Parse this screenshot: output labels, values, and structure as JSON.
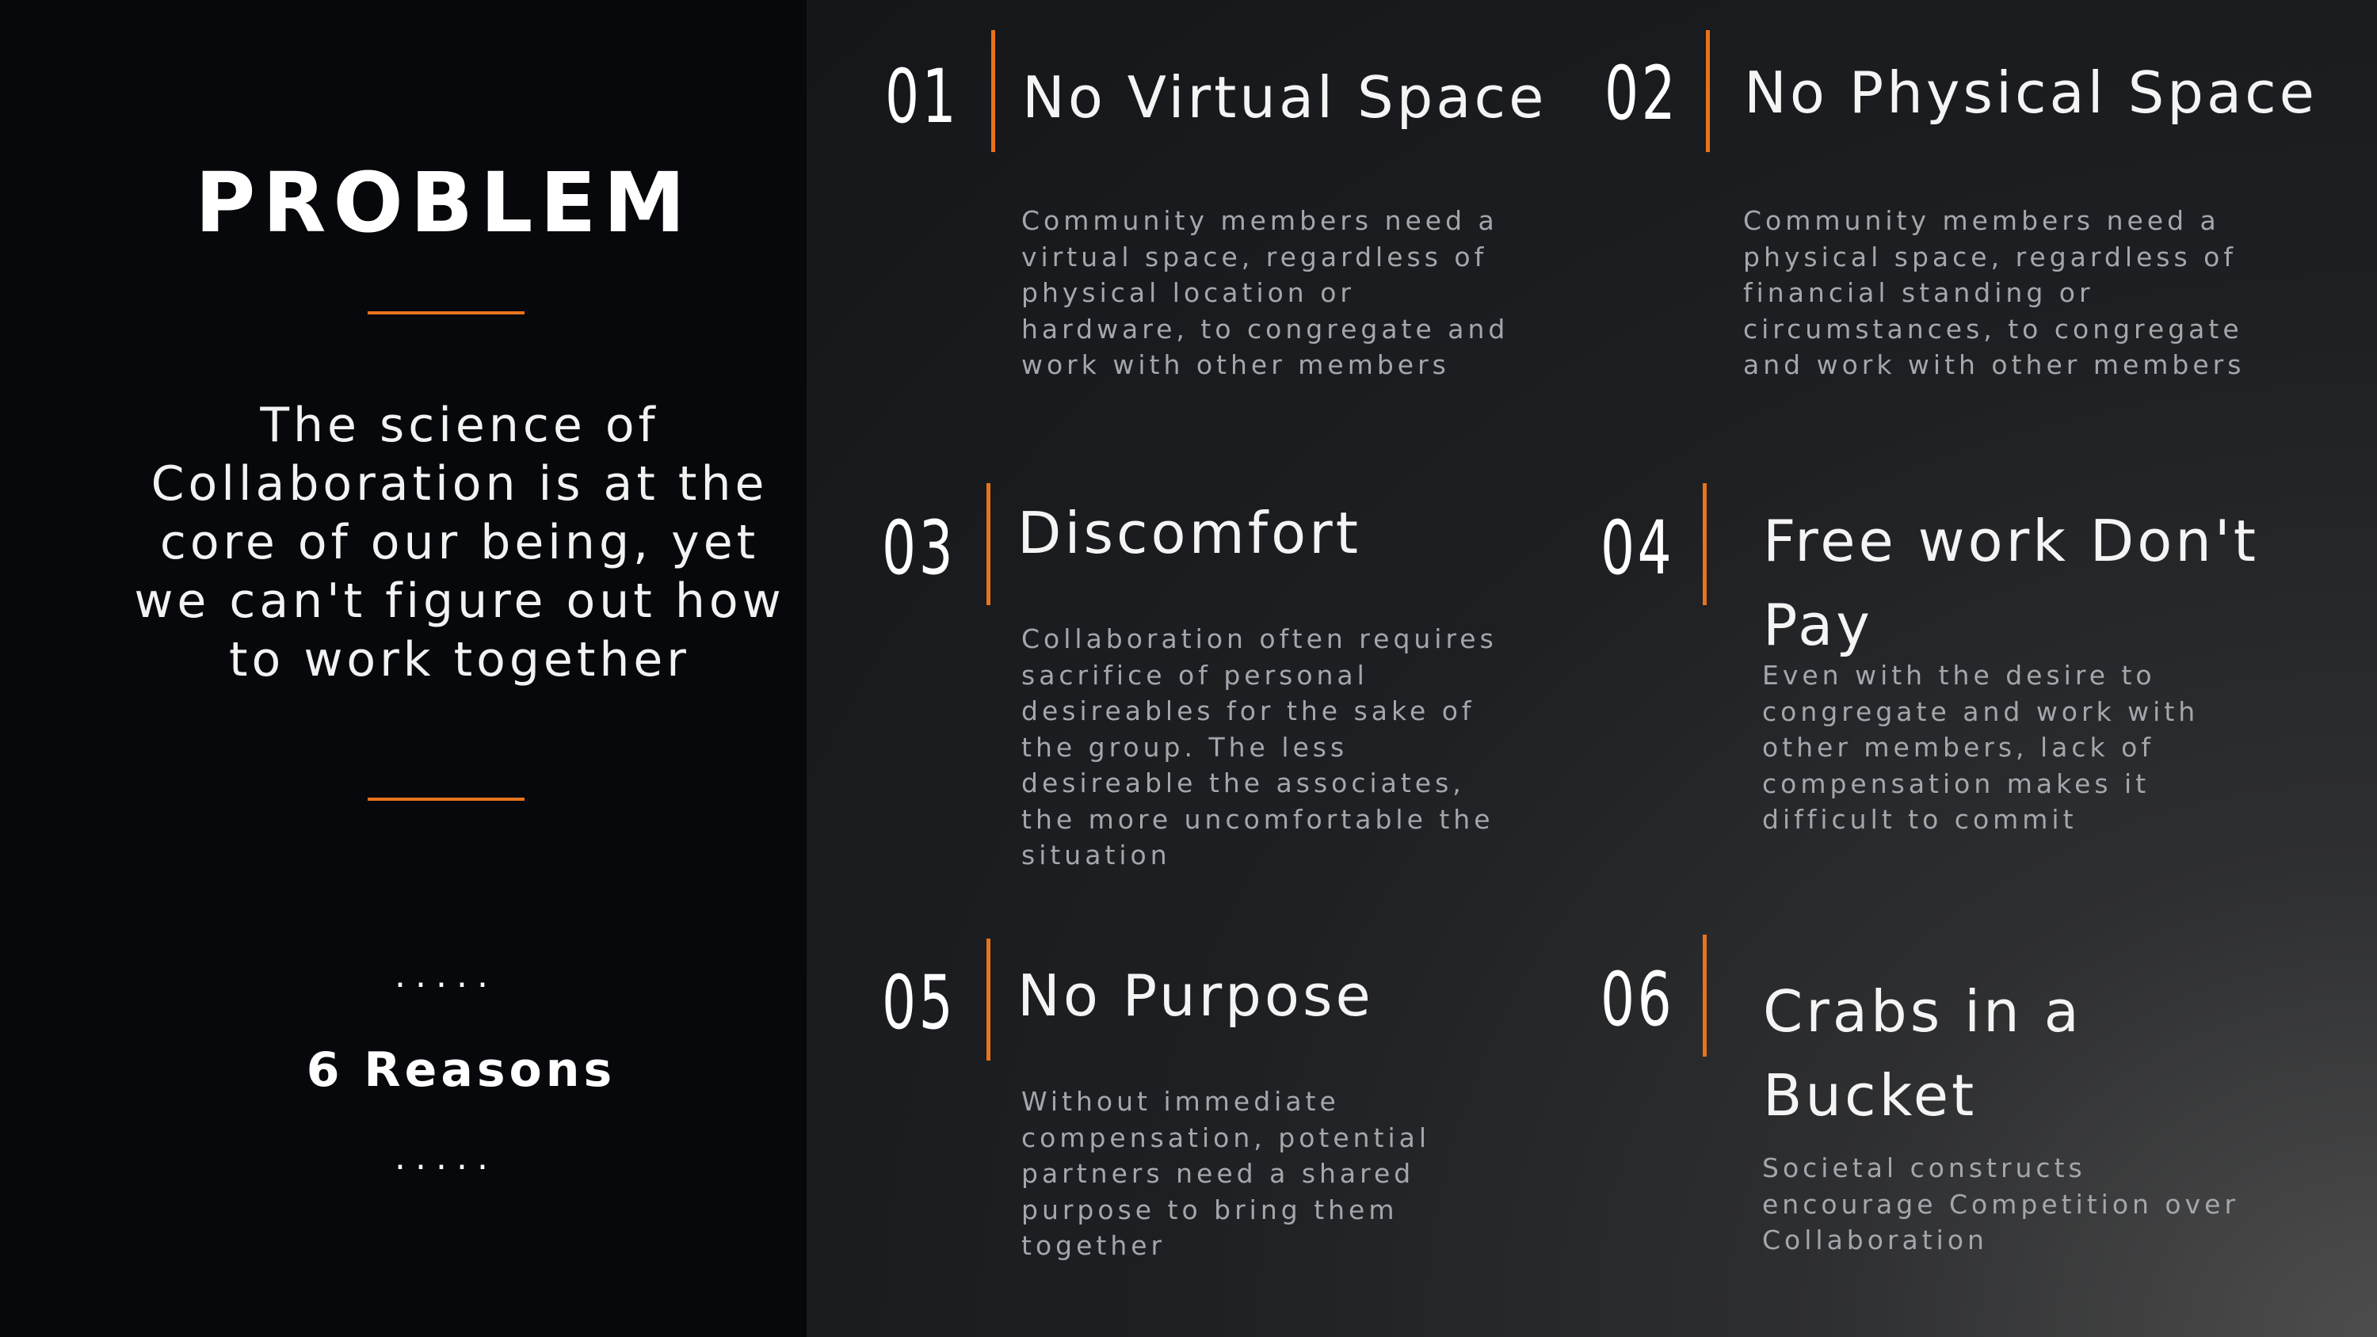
{
  "left": {
    "title": "PROBLEM",
    "tagline": "The science of\nCollaboration is at the\ncore of our being, yet\nwe can't figure out how\nto work together",
    "dots": ".....",
    "reasons_label": "6 Reasons"
  },
  "reasons": [
    {
      "number": "01",
      "title": "No Virtual Space",
      "description": "Community members need a\nvirtual space, regardless of\nphysical location or\nhardware, to congregate and\nwork with other members"
    },
    {
      "number": "02",
      "title": "No Physical Space",
      "description": "Community members need a\nphysical space, regardless of\nfinancial standing or\ncircumstances, to congregate\nand work with other members"
    },
    {
      "number": "03",
      "title": "Discomfort",
      "description": "Collaboration often requires\nsacrifice of personal\ndesireables for the sake of\nthe group. The less\ndesireable the associates,\nthe more uncomfortable the\nsituation"
    },
    {
      "number": "04",
      "title": "Free work Don't\nPay",
      "description": "Even with the desire to\ncongregate and work with\nother members, lack of\ncompensation makes it\ndifficult to commit"
    },
    {
      "number": "05",
      "title": "No Purpose",
      "description": "Without immediate\ncompensation, potential\npartners need a shared\npurpose to bring them\ntogether"
    },
    {
      "number": "06",
      "title": "Crabs in a\nBucket",
      "description": "Societal constructs\nencourage Competition over\nCollaboration"
    }
  ],
  "colors": {
    "accent": "#e8731c",
    "left_bg": "#06080b",
    "right_bg": "#1d1f22",
    "description_text": "#a3a7ad"
  }
}
